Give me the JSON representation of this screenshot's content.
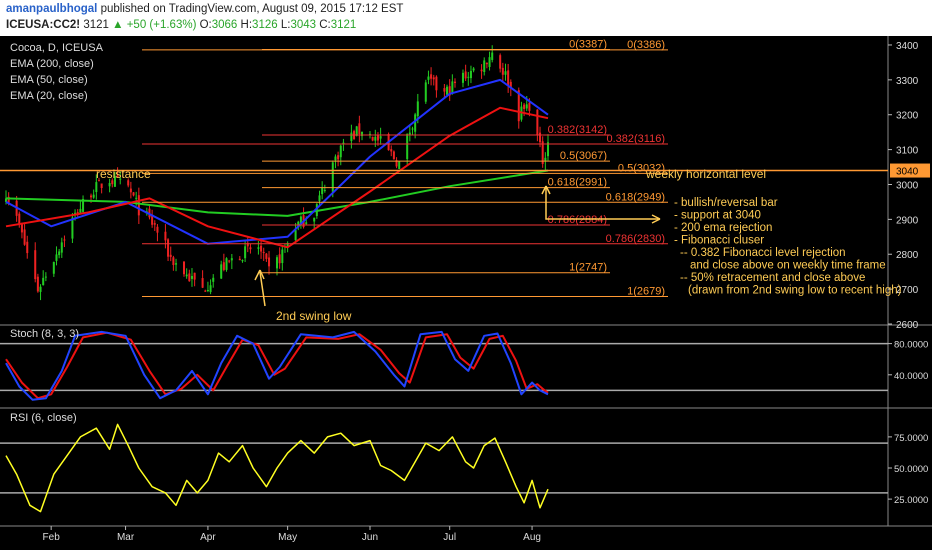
{
  "header": {
    "author": "amanpaulbhogal",
    "published": "published on TradingView.com, August 09, 2015 17:12 EST",
    "symbol": "ICEUSA:CC2!",
    "last": "3121",
    "change": "+50 (+1.63%)",
    "o_label": "O:",
    "o": "3066",
    "h_label": "H:",
    "h": "3126",
    "l_label": "L:",
    "l": "3043",
    "c_label": "C:",
    "c": "3121"
  },
  "legend": {
    "title": "Cocoa, D, ICEUSA",
    "ema200": "EMA (200, close)",
    "ema50": "EMA (50, close)",
    "ema20": "EMA (20, close)"
  },
  "colors": {
    "bg": "#000000",
    "up": "#22cc22",
    "down": "#ee2222",
    "ema200": "#22cc22",
    "ema50": "#2233ff",
    "ema20": "#ee1111",
    "fib_orange": "#ff9933",
    "fib_red": "#ee3333",
    "annot": "#ffcc55",
    "stoch_k": "#2244ff",
    "stoch_d": "#ee1111",
    "rsi": "#ffff22"
  },
  "chart_data": [
    {
      "type": "candlestick",
      "y_axis": {
        "ylim": [
          2600,
          3420
        ],
        "ticks": [
          2600,
          2700,
          2800,
          2900,
          3000,
          3100,
          3200,
          3300,
          3400
        ]
      },
      "x_axis": {
        "months": [
          "Feb",
          "Mar",
          "Apr",
          "May",
          "Jun",
          "Jul",
          "Aug"
        ],
        "start_date": "2015-01-15",
        "end_date": "2015-08-07"
      },
      "close_anchors": [
        [
          "2015-01-15",
          2980
        ],
        [
          "2015-01-20",
          2880
        ],
        [
          "2015-01-27",
          2700
        ],
        [
          "2015-02-02",
          2790
        ],
        [
          "2015-02-09",
          2900
        ],
        [
          "2015-02-16",
          2980
        ],
        [
          "2015-02-23",
          3015
        ],
        [
          "2015-03-02",
          2990
        ],
        [
          "2015-03-06",
          2930
        ],
        [
          "2015-03-12",
          2880
        ],
        [
          "2015-03-18",
          2790
        ],
        [
          "2015-03-24",
          2740
        ],
        [
          "2015-03-30",
          2700
        ],
        [
          "2015-04-06",
          2760
        ],
        [
          "2015-04-13",
          2800
        ],
        [
          "2015-04-20",
          2820
        ],
        [
          "2015-04-24",
          2750
        ],
        [
          "2015-04-28",
          2790
        ],
        [
          "2015-05-04",
          2880
        ],
        [
          "2015-05-11",
          2920
        ],
        [
          "2015-05-18",
          3060
        ],
        [
          "2015-05-22",
          3120
        ],
        [
          "2015-05-29",
          3160
        ],
        [
          "2015-06-05",
          3120
        ],
        [
          "2015-06-12",
          3060
        ],
        [
          "2015-06-17",
          3180
        ],
        [
          "2015-06-22",
          3300
        ],
        [
          "2015-06-29",
          3260
        ],
        [
          "2015-07-06",
          3310
        ],
        [
          "2015-07-13",
          3340
        ],
        [
          "2015-07-17",
          3380
        ],
        [
          "2015-07-23",
          3300
        ],
        [
          "2015-07-27",
          3200
        ],
        [
          "2015-07-31",
          3230
        ],
        [
          "2015-08-05",
          3070
        ],
        [
          "2015-08-07",
          3121
        ]
      ],
      "last_price": 3121,
      "ema200": [
        [
          "2015-01-15",
          2960
        ],
        [
          "2015-03-01",
          2950
        ],
        [
          "2015-04-01",
          2920
        ],
        [
          "2015-05-01",
          2910
        ],
        [
          "2015-06-01",
          2950
        ],
        [
          "2015-07-01",
          2995
        ],
        [
          "2015-08-07",
          3040
        ]
      ],
      "ema50": [
        [
          "2015-01-15",
          2950
        ],
        [
          "2015-02-01",
          2880
        ],
        [
          "2015-03-01",
          2950
        ],
        [
          "2015-04-01",
          2830
        ],
        [
          "2015-05-01",
          2850
        ],
        [
          "2015-06-01",
          3080
        ],
        [
          "2015-07-01",
          3260
        ],
        [
          "2015-07-20",
          3300
        ],
        [
          "2015-08-07",
          3200
        ]
      ],
      "ema20": [
        [
          "2015-01-15",
          2880
        ],
        [
          "2015-02-15",
          2920
        ],
        [
          "2015-03-10",
          2960
        ],
        [
          "2015-04-01",
          2880
        ],
        [
          "2015-05-01",
          2820
        ],
        [
          "2015-06-01",
          2980
        ],
        [
          "2015-07-01",
          3140
        ],
        [
          "2015-07-20",
          3220
        ],
        [
          "2015-08-07",
          3190
        ]
      ],
      "horizontal_levels": [
        {
          "value": 3040,
          "label": "3040",
          "color": "#ff9933"
        }
      ],
      "fib_set_1": [
        {
          "label": "0(3387)",
          "value": 3387,
          "color": "#ff9933"
        },
        {
          "label": "0.382(3142)",
          "value": 3142,
          "color": "#ee3333"
        },
        {
          "label": "0.5(3067)",
          "value": 3067,
          "color": "#ff9933"
        },
        {
          "label": "0.618(2991)",
          "value": 2991,
          "color": "#ff9933"
        },
        {
          "label": "0.786(2884)",
          "value": 2884,
          "color": "#ee3333"
        },
        {
          "label": "1(2747)",
          "value": 2747,
          "color": "#ff9933"
        }
      ],
      "fib_set_2": [
        {
          "label": "0(3386)",
          "value": 3386,
          "color": "#ff9933"
        },
        {
          "label": "0.382(3116)",
          "value": 3116,
          "color": "#ee3333"
        },
        {
          "label": "0.5(3032)",
          "value": 3032,
          "color": "#ff9933"
        },
        {
          "label": "0.618(2949)",
          "value": 2949,
          "color": "#ff9933"
        },
        {
          "label": "0.786(2830)",
          "value": 2830,
          "color": "#ee3333"
        },
        {
          "label": "1(2679)",
          "value": 2679,
          "color": "#ff9933"
        }
      ],
      "annotations": {
        "resistance": "resistance",
        "weekly": "weekly horizontal level",
        "swing": "2nd swing low",
        "notes": [
          "- bullish/reversal bar",
          "- support at 3040",
          "- 200 ema rejection",
          "- Fibonacci cluser",
          "-- 0.382 Fibonacci level rejection",
          "and close above on weekly time frame",
          "-- 50% retracement and close above",
          "(drawn from 2nd swing low to recent high)"
        ]
      }
    },
    {
      "type": "line",
      "title": "Stoch (8, 3, 3)",
      "ylim": [
        0,
        100
      ],
      "ticks": [
        40,
        80
      ],
      "tick_labels": [
        "40.0000",
        "80.0000"
      ],
      "levels": [
        80,
        20
      ],
      "k": [
        [
          "2015-01-15",
          55
        ],
        [
          "2015-01-20",
          25
        ],
        [
          "2015-01-25",
          8
        ],
        [
          "2015-01-30",
          10
        ],
        [
          "2015-02-05",
          45
        ],
        [
          "2015-02-10",
          90
        ],
        [
          "2015-02-20",
          95
        ],
        [
          "2015-03-01",
          90
        ],
        [
          "2015-03-08",
          40
        ],
        [
          "2015-03-14",
          10
        ],
        [
          "2015-03-20",
          20
        ],
        [
          "2015-03-26",
          45
        ],
        [
          "2015-04-01",
          15
        ],
        [
          "2015-04-06",
          55
        ],
        [
          "2015-04-12",
          90
        ],
        [
          "2015-04-18",
          80
        ],
        [
          "2015-04-24",
          35
        ],
        [
          "2015-04-28",
          50
        ],
        [
          "2015-05-06",
          92
        ],
        [
          "2015-05-18",
          88
        ],
        [
          "2015-05-26",
          95
        ],
        [
          "2015-06-03",
          70
        ],
        [
          "2015-06-10",
          40
        ],
        [
          "2015-06-14",
          25
        ],
        [
          "2015-06-20",
          92
        ],
        [
          "2015-06-28",
          95
        ],
        [
          "2015-07-03",
          60
        ],
        [
          "2015-07-08",
          45
        ],
        [
          "2015-07-14",
          90
        ],
        [
          "2015-07-19",
          93
        ],
        [
          "2015-07-24",
          55
        ],
        [
          "2015-07-28",
          15
        ],
        [
          "2015-08-01",
          30
        ],
        [
          "2015-08-04",
          20
        ],
        [
          "2015-08-07",
          15
        ]
      ],
      "d": [
        [
          "2015-01-15",
          60
        ],
        [
          "2015-01-21",
          30
        ],
        [
          "2015-01-27",
          10
        ],
        [
          "2015-02-01",
          15
        ],
        [
          "2015-02-07",
          50
        ],
        [
          "2015-02-13",
          88
        ],
        [
          "2015-02-22",
          94
        ],
        [
          "2015-03-03",
          85
        ],
        [
          "2015-03-10",
          45
        ],
        [
          "2015-03-16",
          15
        ],
        [
          "2015-03-22",
          22
        ],
        [
          "2015-03-28",
          40
        ],
        [
          "2015-04-03",
          20
        ],
        [
          "2015-04-08",
          50
        ],
        [
          "2015-04-14",
          85
        ],
        [
          "2015-04-20",
          78
        ],
        [
          "2015-04-26",
          40
        ],
        [
          "2015-04-30",
          48
        ],
        [
          "2015-05-08",
          88
        ],
        [
          "2015-05-20",
          86
        ],
        [
          "2015-05-28",
          92
        ],
        [
          "2015-06-05",
          72
        ],
        [
          "2015-06-12",
          42
        ],
        [
          "2015-06-16",
          30
        ],
        [
          "2015-06-22",
          88
        ],
        [
          "2015-06-30",
          92
        ],
        [
          "2015-07-05",
          62
        ],
        [
          "2015-07-10",
          48
        ],
        [
          "2015-07-16",
          86
        ],
        [
          "2015-07-21",
          90
        ],
        [
          "2015-07-26",
          58
        ],
        [
          "2015-07-30",
          22
        ],
        [
          "2015-08-03",
          28
        ],
        [
          "2015-08-05",
          22
        ],
        [
          "2015-08-07",
          17
        ]
      ]
    },
    {
      "type": "line",
      "title": "RSI (6, close)",
      "ylim": [
        5,
        95
      ],
      "ticks": [
        25,
        50,
        75
      ],
      "tick_labels": [
        "25.0000",
        "50.0000",
        "75.0000"
      ],
      "levels": [
        70,
        30
      ],
      "values": [
        [
          "2015-01-15",
          60
        ],
        [
          "2015-01-19",
          45
        ],
        [
          "2015-01-24",
          20
        ],
        [
          "2015-01-28",
          15
        ],
        [
          "2015-02-02",
          45
        ],
        [
          "2015-02-07",
          60
        ],
        [
          "2015-02-12",
          75
        ],
        [
          "2015-02-18",
          82
        ],
        [
          "2015-02-23",
          65
        ],
        [
          "2015-02-26",
          85
        ],
        [
          "2015-03-02",
          68
        ],
        [
          "2015-03-06",
          50
        ],
        [
          "2015-03-11",
          35
        ],
        [
          "2015-03-16",
          30
        ],
        [
          "2015-03-20",
          20
        ],
        [
          "2015-03-24",
          40
        ],
        [
          "2015-03-28",
          30
        ],
        [
          "2015-04-01",
          40
        ],
        [
          "2015-04-05",
          62
        ],
        [
          "2015-04-09",
          55
        ],
        [
          "2015-04-14",
          68
        ],
        [
          "2015-04-18",
          50
        ],
        [
          "2015-04-23",
          35
        ],
        [
          "2015-04-27",
          50
        ],
        [
          "2015-05-01",
          62
        ],
        [
          "2015-05-06",
          72
        ],
        [
          "2015-05-11",
          62
        ],
        [
          "2015-05-16",
          75
        ],
        [
          "2015-05-21",
          78
        ],
        [
          "2015-05-26",
          68
        ],
        [
          "2015-06-01",
          72
        ],
        [
          "2015-06-05",
          52
        ],
        [
          "2015-06-09",
          48
        ],
        [
          "2015-06-14",
          40
        ],
        [
          "2015-06-18",
          55
        ],
        [
          "2015-06-22",
          70
        ],
        [
          "2015-06-27",
          64
        ],
        [
          "2015-07-02",
          75
        ],
        [
          "2015-07-07",
          55
        ],
        [
          "2015-07-10",
          50
        ],
        [
          "2015-07-14",
          68
        ],
        [
          "2015-07-18",
          74
        ],
        [
          "2015-07-22",
          55
        ],
        [
          "2015-07-26",
          35
        ],
        [
          "2015-07-29",
          22
        ],
        [
          "2015-08-01",
          40
        ],
        [
          "2015-08-04",
          18
        ],
        [
          "2015-08-07",
          33
        ]
      ]
    }
  ]
}
